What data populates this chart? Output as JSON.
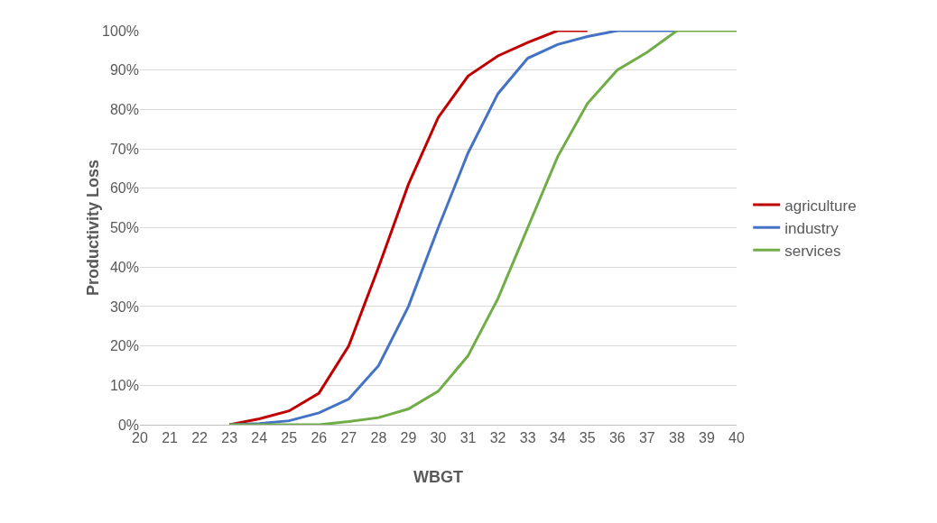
{
  "chart_data": {
    "type": "line",
    "xlabel": "WBGT",
    "ylabel": "Productivity Loss",
    "x": [
      23,
      24,
      25,
      26,
      27,
      28,
      29,
      30,
      31,
      32,
      33,
      34,
      35,
      36,
      37,
      38,
      39,
      40
    ],
    "series": [
      {
        "name": "agriculture",
        "color": "#c00000",
        "values": [
          0,
          1.5,
          3.5,
          8,
          20,
          40,
          61,
          78,
          88.5,
          93.6,
          97,
          100,
          100,
          null,
          null,
          null,
          null,
          null
        ]
      },
      {
        "name": "industry",
        "color": "#4472c4",
        "values": [
          0,
          0.3,
          1,
          3,
          6.5,
          15,
          30,
          50,
          69,
          84,
          93,
          96.5,
          98.5,
          100,
          100,
          100,
          null,
          null
        ]
      },
      {
        "name": "services",
        "color": "#70ad47",
        "values": [
          0,
          0,
          0,
          0,
          0.8,
          1.8,
          4,
          8.5,
          17.5,
          32,
          50,
          68,
          81.5,
          90,
          94.5,
          100,
          100,
          100
        ]
      }
    ],
    "xlim": [
      20,
      40
    ],
    "xticks": [
      20,
      21,
      22,
      23,
      24,
      25,
      26,
      27,
      28,
      29,
      30,
      31,
      32,
      33,
      34,
      35,
      36,
      37,
      38,
      39,
      40
    ],
    "ylim": [
      0,
      100
    ],
    "yticks": [
      {
        "value": 0,
        "label": "0%"
      },
      {
        "value": 10,
        "label": "10%"
      },
      {
        "value": 20,
        "label": "20%"
      },
      {
        "value": 30,
        "label": "30%"
      },
      {
        "value": 40,
        "label": "40%"
      },
      {
        "value": 50,
        "label": "50%"
      },
      {
        "value": 60,
        "label": "60%"
      },
      {
        "value": 70,
        "label": "70%"
      },
      {
        "value": 80,
        "label": "80%"
      },
      {
        "value": 90,
        "label": "90%"
      },
      {
        "value": 100,
        "label": "100%"
      }
    ],
    "grid": "y",
    "legend": "right",
    "marker": "none",
    "line_style": "solid"
  }
}
